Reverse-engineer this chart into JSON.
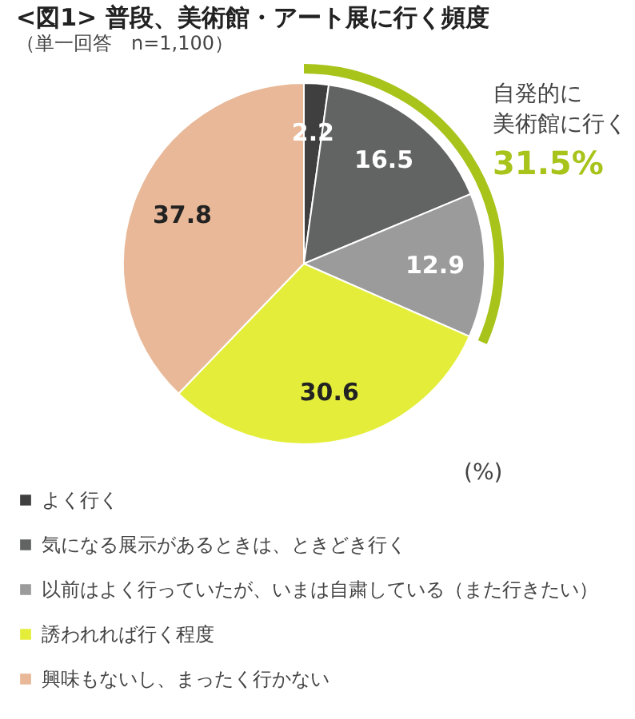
{
  "chart_data": {
    "type": "pie",
    "title": "<図1> 普段、美術館・アート展に行く頻度",
    "subtitle": "（単一回答　n=1,100）",
    "categories": [
      "よく行く",
      "気になる展示があるときは、ときどき行く",
      "以前はよく行っていたが、いまは自粛している（また行きたい）",
      "誘われれば行く程度",
      "興味もないし、まったく行かない"
    ],
    "values": [
      2.2,
      16.5,
      12.9,
      30.6,
      37.8
    ],
    "colors": [
      "#3f3f3f",
      "#626463",
      "#9a9b9a",
      "#e4ee3a",
      "#e8b898"
    ],
    "data_labels": true,
    "legend": "bottom",
    "annotations": [
      "自発的に",
      "美術館に行く",
      "31.5%",
      "(%)"
    ]
  }
}
